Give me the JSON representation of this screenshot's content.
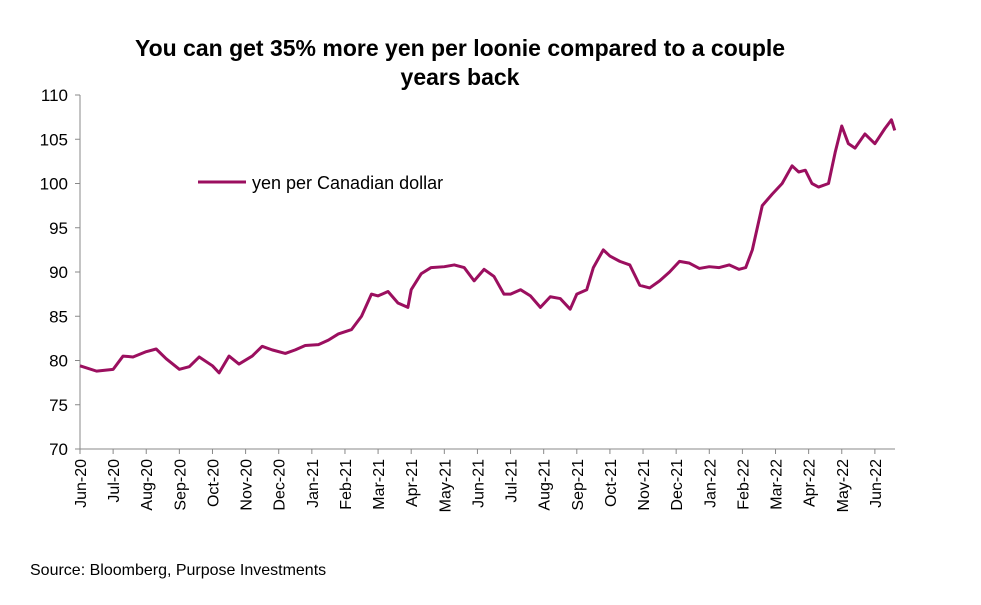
{
  "chart_data": {
    "type": "line",
    "title": "You can get 35% more yen per loonie compared to a couple years back",
    "source": "Source: Bloomberg, Purpose Investments",
    "x": [
      0,
      0.5,
      1.0,
      1.3,
      1.6,
      2.0,
      2.3,
      2.6,
      3.0,
      3.3,
      3.6,
      4.0,
      4.2,
      4.5,
      4.8,
      5.2,
      5.5,
      5.8,
      6.2,
      6.5,
      6.8,
      7.2,
      7.5,
      7.8,
      8.2,
      8.5,
      8.8,
      9.0,
      9.3,
      9.6,
      9.9,
      10.0,
      10.3,
      10.6,
      11.0,
      11.3,
      11.6,
      11.9,
      12.2,
      12.5,
      12.8,
      13.0,
      13.3,
      13.6,
      13.9,
      14.2,
      14.5,
      14.8,
      15.0,
      15.3,
      15.5,
      15.8,
      16.0,
      16.3,
      16.6,
      16.9,
      17.2,
      17.5,
      17.8,
      18.1,
      18.4,
      18.7,
      19.0,
      19.3,
      19.6,
      19.9,
      20.1,
      20.3,
      20.6,
      20.9,
      21.2,
      21.5,
      21.7,
      21.9,
      22.1,
      22.3,
      22.6,
      22.8,
      23.0,
      23.2,
      23.4,
      23.7,
      24.0,
      24.3,
      24.5,
      24.6
    ],
    "series": [
      {
        "name": "yen per Canadian dollar",
        "color": "#9b0f5f",
        "values": [
          79.4,
          78.8,
          79.0,
          80.5,
          80.4,
          81.0,
          81.3,
          80.2,
          79.0,
          79.3,
          80.4,
          79.4,
          78.6,
          80.5,
          79.6,
          80.5,
          81.6,
          81.2,
          80.8,
          81.2,
          81.7,
          81.8,
          82.3,
          83.0,
          83.5,
          85.0,
          87.5,
          87.3,
          87.8,
          86.5,
          86.0,
          88.0,
          89.8,
          90.5,
          90.6,
          90.8,
          90.5,
          89.0,
          90.3,
          89.5,
          87.5,
          87.5,
          88.0,
          87.3,
          86.0,
          87.2,
          87.0,
          85.8,
          87.5,
          88.0,
          90.5,
          92.5,
          91.8,
          91.2,
          90.8,
          88.5,
          88.2,
          89.0,
          90.0,
          91.2,
          91.0,
          90.4,
          90.6,
          90.5,
          90.8,
          90.3,
          90.5,
          92.5,
          97.5,
          98.8,
          100.0,
          102.0,
          101.3,
          101.5,
          100.0,
          99.6,
          100.0,
          103.5,
          106.5,
          104.5,
          104.0,
          105.6,
          104.5,
          106.2,
          107.2,
          106.0
        ]
      }
    ],
    "xlim": [
      0,
      24.6
    ],
    "xticks": [
      {
        "value": 0,
        "label": "Jun-20"
      },
      {
        "value": 1,
        "label": "Jul-20"
      },
      {
        "value": 2,
        "label": "Aug-20"
      },
      {
        "value": 3,
        "label": "Sep-20"
      },
      {
        "value": 4,
        "label": "Oct-20"
      },
      {
        "value": 5,
        "label": "Nov-20"
      },
      {
        "value": 6,
        "label": "Dec-20"
      },
      {
        "value": 7,
        "label": "Jan-21"
      },
      {
        "value": 8,
        "label": "Feb-21"
      },
      {
        "value": 9,
        "label": "Mar-21"
      },
      {
        "value": 10,
        "label": "Apr-21"
      },
      {
        "value": 11,
        "label": "May-21"
      },
      {
        "value": 12,
        "label": "Jun-21"
      },
      {
        "value": 13,
        "label": "Jul-21"
      },
      {
        "value": 14,
        "label": "Aug-21"
      },
      {
        "value": 15,
        "label": "Sep-21"
      },
      {
        "value": 16,
        "label": "Oct-21"
      },
      {
        "value": 17,
        "label": "Nov-21"
      },
      {
        "value": 18,
        "label": "Dec-21"
      },
      {
        "value": 19,
        "label": "Jan-22"
      },
      {
        "value": 20,
        "label": "Feb-22"
      },
      {
        "value": 21,
        "label": "Mar-22"
      },
      {
        "value": 22,
        "label": "Apr-22"
      },
      {
        "value": 23,
        "label": "May-22"
      },
      {
        "value": 24,
        "label": "Jun-22"
      }
    ],
    "ylim": [
      70,
      110
    ],
    "yticks": [
      70,
      75,
      80,
      85,
      90,
      95,
      100,
      105,
      110
    ],
    "grid": false
  }
}
